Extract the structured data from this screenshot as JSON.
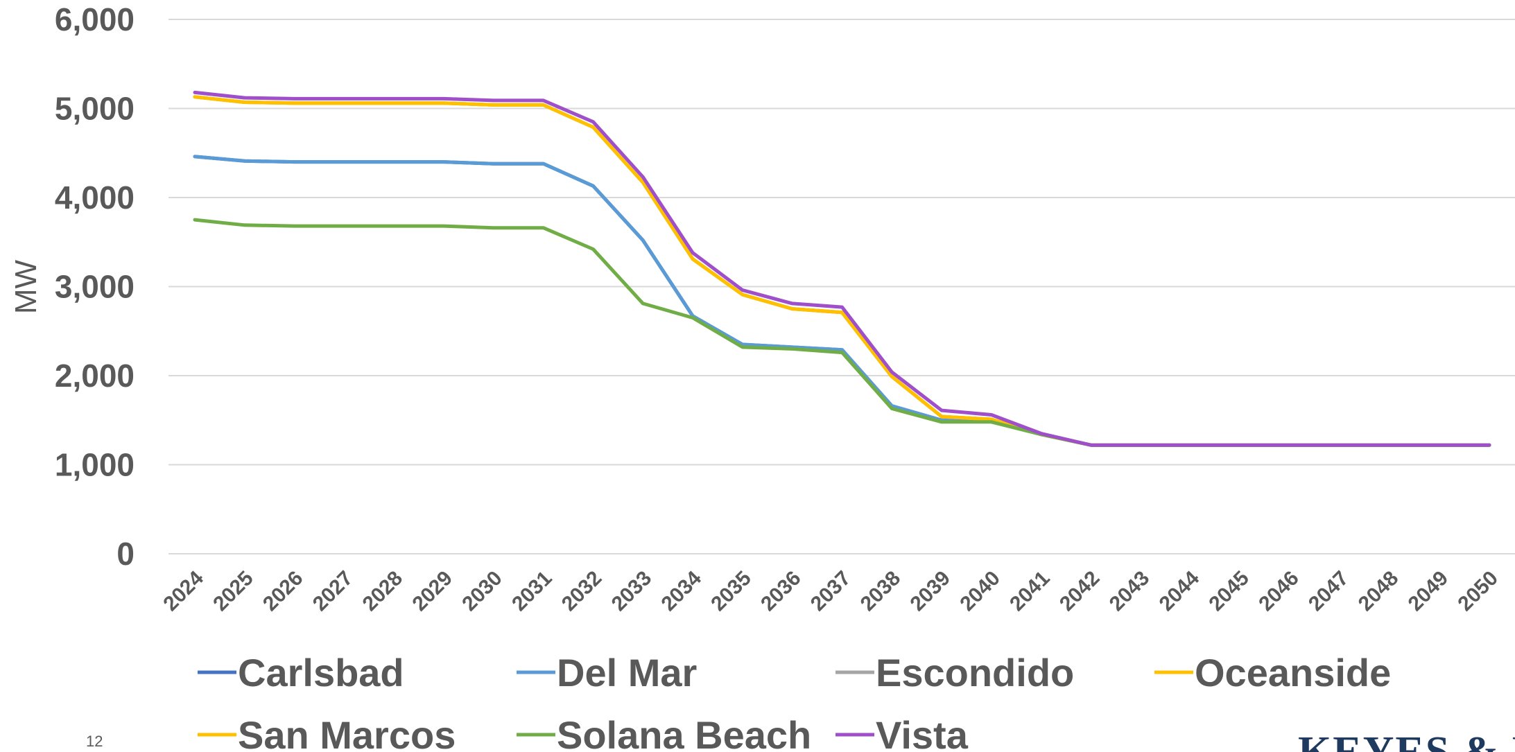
{
  "page_number": "12",
  "logo_text": "KEYES & FOX",
  "chart_data": {
    "type": "line",
    "title": "",
    "xlabel": "",
    "ylabel": "MW",
    "ylim": [
      0,
      6000
    ],
    "yticks": [
      0,
      1000,
      2000,
      3000,
      4000,
      5000,
      6000
    ],
    "ytick_labels": [
      "0",
      "1,000",
      "2,000",
      "3,000",
      "4,000",
      "5,000",
      "6,000"
    ],
    "grid": true,
    "legend_position": "bottom",
    "categories": [
      "2024",
      "2025",
      "2026",
      "2027",
      "2028",
      "2029",
      "2030",
      "2031",
      "2032",
      "2033",
      "2034",
      "2035",
      "2036",
      "2037",
      "2038",
      "2039",
      "2040",
      "2041",
      "2042",
      "2043",
      "2044",
      "2045",
      "2046",
      "2047",
      "2048",
      "2049",
      "2050"
    ],
    "series": [
      {
        "name": "Carlsbad",
        "color": "#4472C4",
        "values": [
          4460,
          4410,
          4400,
          4400,
          4400,
          4400,
          4380,
          4380,
          4130,
          3520,
          2670,
          2350,
          2320,
          2290,
          1660,
          1500,
          1500,
          1340,
          1220,
          1220,
          1220,
          1220,
          1220,
          1220,
          1220,
          1220,
          1220
        ]
      },
      {
        "name": "Del Mar",
        "color": "#5B9BD5",
        "values": [
          4460,
          4410,
          4400,
          4400,
          4400,
          4400,
          4380,
          4380,
          4130,
          3520,
          2670,
          2350,
          2320,
          2290,
          1660,
          1500,
          1500,
          1340,
          1220,
          1220,
          1220,
          1220,
          1220,
          1220,
          1220,
          1220,
          1220
        ]
      },
      {
        "name": "Escondido",
        "color": "#A5A5A5",
        "values": [
          5130,
          5070,
          5060,
          5060,
          5060,
          5060,
          5040,
          5040,
          4790,
          4170,
          3310,
          2910,
          2750,
          2710,
          1990,
          1540,
          1510,
          1340,
          1220,
          1220,
          1220,
          1220,
          1220,
          1220,
          1220,
          1220,
          1220
        ]
      },
      {
        "name": "Oceanside",
        "color": "#FFC000",
        "values": [
          5130,
          5070,
          5060,
          5060,
          5060,
          5060,
          5040,
          5040,
          4790,
          4170,
          3310,
          2910,
          2750,
          2710,
          1990,
          1540,
          1510,
          1340,
          1220,
          1220,
          1220,
          1220,
          1220,
          1220,
          1220,
          1220,
          1220
        ]
      },
      {
        "name": "San Marcos",
        "color": "#FFC000",
        "values": [
          5130,
          5070,
          5060,
          5060,
          5060,
          5060,
          5040,
          5040,
          4790,
          4170,
          3310,
          2910,
          2750,
          2710,
          1990,
          1540,
          1510,
          1340,
          1220,
          1220,
          1220,
          1220,
          1220,
          1220,
          1220,
          1220,
          1220
        ]
      },
      {
        "name": "Solana Beach",
        "color": "#70AD47",
        "values": [
          3750,
          3690,
          3680,
          3680,
          3680,
          3680,
          3660,
          3660,
          3420,
          2810,
          2650,
          2320,
          2300,
          2260,
          1630,
          1480,
          1480,
          1340,
          1220,
          1220,
          1220,
          1220,
          1220,
          1220,
          1220,
          1220,
          1220
        ]
      },
      {
        "name": "Vista",
        "color": "#9E4FC9",
        "values": [
          5180,
          5120,
          5110,
          5110,
          5110,
          5110,
          5090,
          5090,
          4850,
          4230,
          3380,
          2960,
          2810,
          2770,
          2040,
          1610,
          1560,
          1350,
          1220,
          1220,
          1220,
          1220,
          1220,
          1220,
          1220,
          1220,
          1220
        ]
      }
    ]
  }
}
